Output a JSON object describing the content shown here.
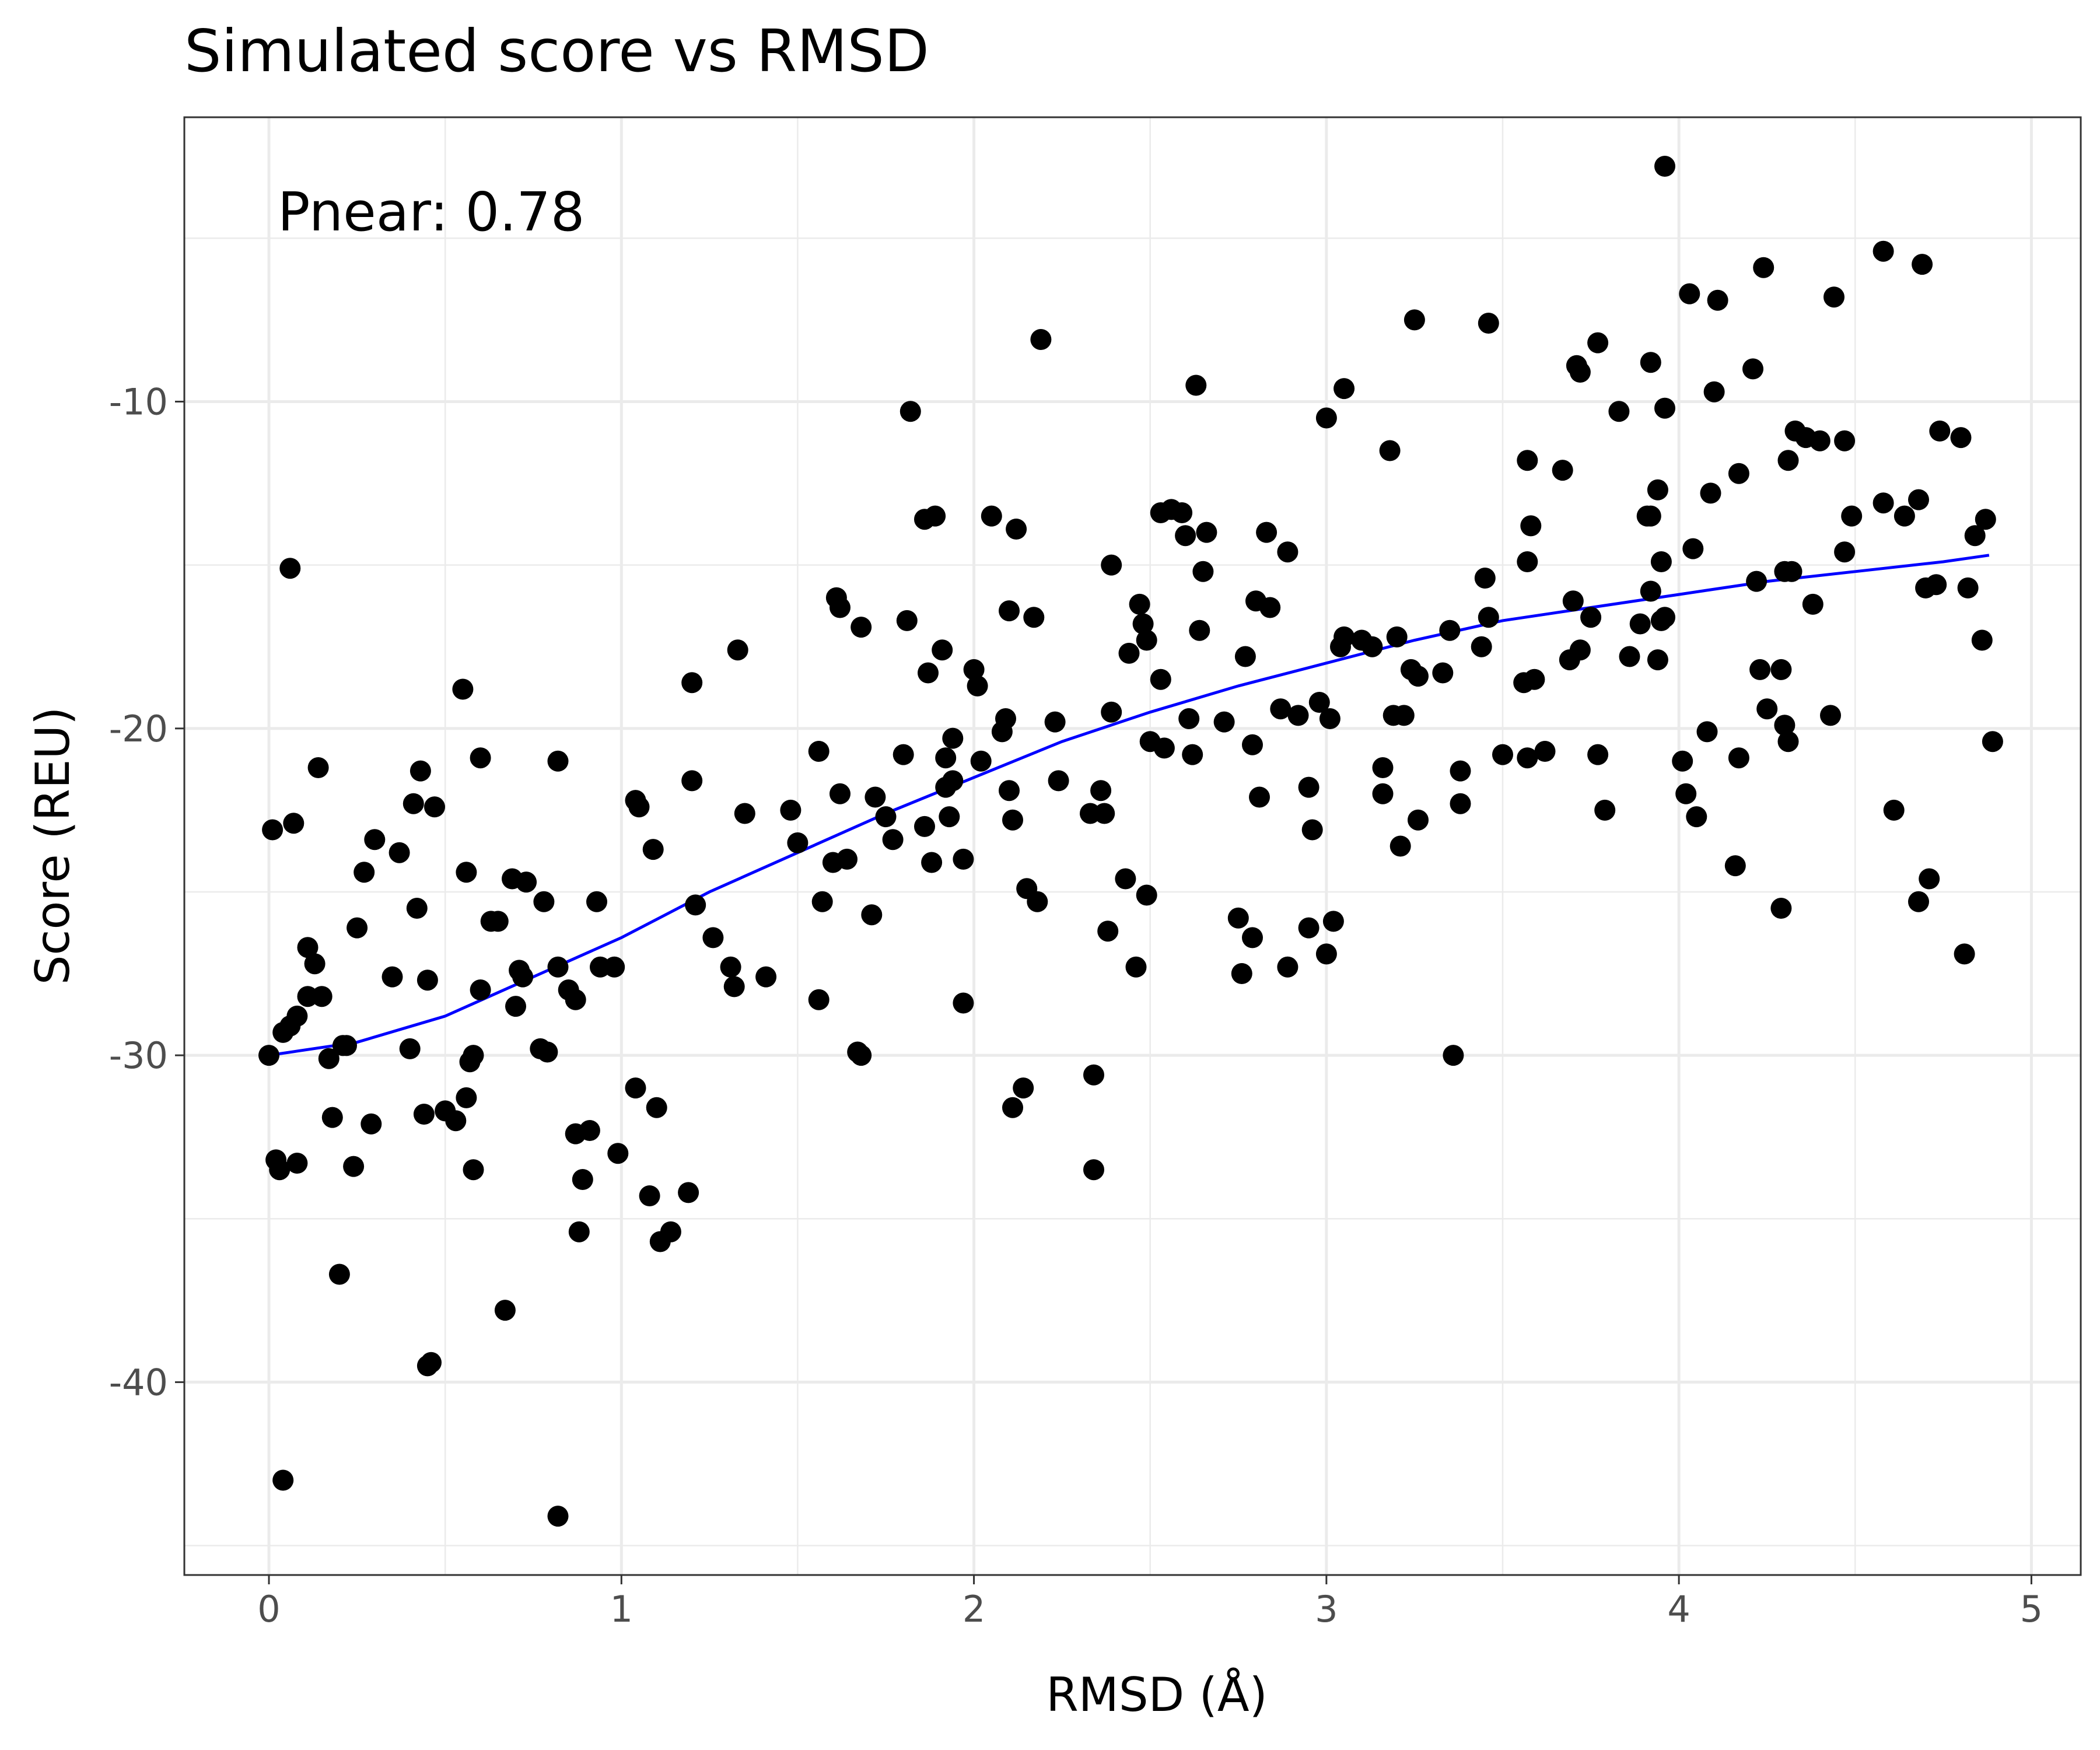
{
  "chart_data": {
    "type": "scatter",
    "title": "Simulated score vs RMSD",
    "xlabel": "RMSD (Å)",
    "ylabel": "Score (REU)",
    "annotation": "Pnear: 0.78",
    "xlim": [
      -0.24,
      5.14
    ],
    "ylim": [
      -45.9,
      -1.3
    ],
    "x_ticks": [
      0,
      1,
      2,
      3,
      4,
      5
    ],
    "x_tick_labels": [
      "0",
      "1",
      "2",
      "3",
      "4",
      "5"
    ],
    "y_ticks": [
      -40,
      -30,
      -20,
      -10
    ],
    "y_tick_labels": [
      "-40",
      "-30",
      "-20",
      "-10"
    ],
    "grid": true,
    "legend": "none",
    "colors": {
      "points": "#000000",
      "fit_line": "#0000ff"
    },
    "series": [
      {
        "kind": "points",
        "points": [
          [
            0.0,
            -30.0
          ],
          [
            0.01,
            -23.1
          ],
          [
            0.02,
            -33.2
          ],
          [
            0.03,
            -33.5
          ],
          [
            0.04,
            -43.0
          ],
          [
            0.04,
            -29.3
          ],
          [
            0.06,
            -29.1
          ],
          [
            0.06,
            -15.1
          ],
          [
            0.07,
            -22.9
          ],
          [
            0.08,
            -28.8
          ],
          [
            0.08,
            -33.3
          ],
          [
            0.11,
            -28.2
          ],
          [
            0.11,
            -26.7
          ],
          [
            0.13,
            -27.2
          ],
          [
            0.14,
            -21.2
          ],
          [
            0.15,
            -28.2
          ],
          [
            0.17,
            -30.1
          ],
          [
            0.18,
            -31.9
          ],
          [
            0.2,
            -36.7
          ],
          [
            0.21,
            -29.7
          ],
          [
            0.22,
            -29.7
          ],
          [
            0.24,
            -33.4
          ],
          [
            0.25,
            -26.1
          ],
          [
            0.27,
            -24.4
          ],
          [
            0.29,
            -32.1
          ],
          [
            0.3,
            -23.4
          ],
          [
            0.35,
            -27.6
          ],
          [
            0.37,
            -23.8
          ],
          [
            0.4,
            -29.8
          ],
          [
            0.41,
            -22.3
          ],
          [
            0.42,
            -25.5
          ],
          [
            0.43,
            -21.3
          ],
          [
            0.44,
            -31.8
          ],
          [
            0.45,
            -39.5
          ],
          [
            0.45,
            -27.7
          ],
          [
            0.46,
            -39.4
          ],
          [
            0.47,
            -22.4
          ],
          [
            0.5,
            -31.7
          ],
          [
            0.53,
            -32.0
          ],
          [
            0.55,
            -18.8
          ],
          [
            0.56,
            -24.4
          ],
          [
            0.56,
            -31.3
          ],
          [
            0.57,
            -30.2
          ],
          [
            0.58,
            -33.5
          ],
          [
            0.58,
            -30.0
          ],
          [
            0.6,
            -20.9
          ],
          [
            0.6,
            -28.0
          ],
          [
            0.63,
            -25.9
          ],
          [
            0.65,
            -25.9
          ],
          [
            0.67,
            -37.8
          ],
          [
            0.69,
            -24.6
          ],
          [
            0.7,
            -28.5
          ],
          [
            0.71,
            -27.4
          ],
          [
            0.72,
            -27.6
          ],
          [
            0.73,
            -24.7
          ],
          [
            0.77,
            -29.8
          ],
          [
            0.78,
            -25.3
          ],
          [
            0.79,
            -29.9
          ],
          [
            0.82,
            -21.0
          ],
          [
            0.82,
            -27.3
          ],
          [
            0.82,
            -44.1
          ],
          [
            0.85,
            -28.0
          ],
          [
            0.87,
            -32.4
          ],
          [
            0.87,
            -28.3
          ],
          [
            0.88,
            -35.4
          ],
          [
            0.89,
            -33.8
          ],
          [
            0.91,
            -32.3
          ],
          [
            0.93,
            -25.3
          ],
          [
            0.94,
            -27.3
          ],
          [
            0.98,
            -27.3
          ],
          [
            0.99,
            -33.0
          ],
          [
            1.04,
            -31.0
          ],
          [
            1.04,
            -22.2
          ],
          [
            1.05,
            -22.4
          ],
          [
            1.08,
            -34.3
          ],
          [
            1.09,
            -23.7
          ],
          [
            1.1,
            -31.6
          ],
          [
            1.11,
            -35.7
          ],
          [
            1.14,
            -35.4
          ],
          [
            1.19,
            -34.2
          ],
          [
            1.2,
            -21.6
          ],
          [
            1.2,
            -18.6
          ],
          [
            1.21,
            -25.4
          ],
          [
            1.26,
            -26.4
          ],
          [
            1.31,
            -27.3
          ],
          [
            1.32,
            -27.9
          ],
          [
            1.33,
            -17.6
          ],
          [
            1.35,
            -22.6
          ],
          [
            1.41,
            -27.6
          ],
          [
            1.48,
            -22.5
          ],
          [
            1.5,
            -23.5
          ],
          [
            1.56,
            -28.3
          ],
          [
            1.56,
            -20.7
          ],
          [
            1.57,
            -25.3
          ],
          [
            1.6,
            -24.1
          ],
          [
            1.61,
            -16.0
          ],
          [
            1.62,
            -16.3
          ],
          [
            1.62,
            -22.0
          ],
          [
            1.64,
            -24.0
          ],
          [
            1.67,
            -29.9
          ],
          [
            1.68,
            -16.9
          ],
          [
            1.68,
            -30.0
          ],
          [
            1.71,
            -25.7
          ],
          [
            1.72,
            -22.1
          ],
          [
            1.75,
            -22.7
          ],
          [
            1.77,
            -23.4
          ],
          [
            1.8,
            -20.8
          ],
          [
            1.81,
            -16.7
          ],
          [
            1.82,
            -10.3
          ],
          [
            1.86,
            -13.6
          ],
          [
            1.86,
            -23.0
          ],
          [
            1.87,
            -18.3
          ],
          [
            1.88,
            -24.1
          ],
          [
            1.89,
            -13.5
          ],
          [
            1.91,
            -17.6
          ],
          [
            1.92,
            -21.8
          ],
          [
            1.92,
            -20.9
          ],
          [
            1.93,
            -22.7
          ],
          [
            1.94,
            -21.6
          ],
          [
            1.94,
            -20.3
          ],
          [
            1.97,
            -24.0
          ],
          [
            1.97,
            -28.4
          ],
          [
            2.0,
            -18.2
          ],
          [
            2.01,
            -18.7
          ],
          [
            2.02,
            -21.0
          ],
          [
            2.05,
            -13.5
          ],
          [
            2.08,
            -20.1
          ],
          [
            2.09,
            -19.7
          ],
          [
            2.1,
            -21.9
          ],
          [
            2.1,
            -16.4
          ],
          [
            2.11,
            -22.8
          ],
          [
            2.11,
            -31.6
          ],
          [
            2.12,
            -13.9
          ],
          [
            2.14,
            -31.0
          ],
          [
            2.15,
            -24.9
          ],
          [
            2.17,
            -16.6
          ],
          [
            2.18,
            -25.3
          ],
          [
            2.19,
            -8.1
          ],
          [
            2.23,
            -19.8
          ],
          [
            2.24,
            -21.6
          ],
          [
            2.33,
            -22.6
          ],
          [
            2.34,
            -33.5
          ],
          [
            2.34,
            -30.6
          ],
          [
            2.36,
            -21.9
          ],
          [
            2.37,
            -22.6
          ],
          [
            2.38,
            -26.2
          ],
          [
            2.39,
            -15.0
          ],
          [
            2.39,
            -19.5
          ],
          [
            2.43,
            -24.6
          ],
          [
            2.44,
            -17.7
          ],
          [
            2.46,
            -27.3
          ],
          [
            2.47,
            -16.2
          ],
          [
            2.48,
            -16.8
          ],
          [
            2.49,
            -17.3
          ],
          [
            2.49,
            -25.1
          ],
          [
            2.5,
            -20.4
          ],
          [
            2.53,
            -18.5
          ],
          [
            2.53,
            -13.4
          ],
          [
            2.54,
            -20.6
          ],
          [
            2.56,
            -13.3
          ],
          [
            2.59,
            -13.4
          ],
          [
            2.6,
            -14.1
          ],
          [
            2.61,
            -19.7
          ],
          [
            2.62,
            -20.8
          ],
          [
            2.63,
            -9.5
          ],
          [
            2.64,
            -17.0
          ],
          [
            2.65,
            -15.2
          ],
          [
            2.66,
            -14.0
          ],
          [
            2.71,
            -19.8
          ],
          [
            2.75,
            -25.8
          ],
          [
            2.76,
            -27.5
          ],
          [
            2.77,
            -17.8
          ],
          [
            2.79,
            -20.5
          ],
          [
            2.79,
            -26.4
          ],
          [
            2.8,
            -16.1
          ],
          [
            2.81,
            -22.1
          ],
          [
            2.83,
            -14.0
          ],
          [
            2.84,
            -16.3
          ],
          [
            2.87,
            -19.4
          ],
          [
            2.89,
            -14.6
          ],
          [
            2.89,
            -27.3
          ],
          [
            2.92,
            -19.6
          ],
          [
            2.95,
            -21.8
          ],
          [
            2.95,
            -26.1
          ],
          [
            2.96,
            -23.1
          ],
          [
            2.98,
            -19.2
          ],
          [
            3.0,
            -10.5
          ],
          [
            3.0,
            -26.9
          ],
          [
            3.01,
            -19.7
          ],
          [
            3.02,
            -25.9
          ],
          [
            3.04,
            -17.5
          ],
          [
            3.05,
            -9.6
          ],
          [
            3.05,
            -17.2
          ],
          [
            3.1,
            -17.3
          ],
          [
            3.13,
            -17.5
          ],
          [
            3.16,
            -21.2
          ],
          [
            3.16,
            -22.0
          ],
          [
            3.18,
            -11.5
          ],
          [
            3.19,
            -19.6
          ],
          [
            3.2,
            -17.2
          ],
          [
            3.21,
            -23.6
          ],
          [
            3.22,
            -19.6
          ],
          [
            3.24,
            -18.2
          ],
          [
            3.25,
            -7.5
          ],
          [
            3.26,
            -22.8
          ],
          [
            3.26,
            -18.4
          ],
          [
            3.33,
            -18.3
          ],
          [
            3.35,
            -17.0
          ],
          [
            3.36,
            -30.0
          ],
          [
            3.38,
            -22.3
          ],
          [
            3.38,
            -21.3
          ],
          [
            3.44,
            -17.5
          ],
          [
            3.45,
            -15.4
          ],
          [
            3.46,
            -16.6
          ],
          [
            3.46,
            -7.6
          ],
          [
            3.5,
            -20.8
          ],
          [
            3.56,
            -18.6
          ],
          [
            3.57,
            -11.8
          ],
          [
            3.57,
            -14.9
          ],
          [
            3.57,
            -20.9
          ],
          [
            3.58,
            -13.8
          ],
          [
            3.59,
            -18.5
          ],
          [
            3.62,
            -20.7
          ],
          [
            3.67,
            -12.1
          ],
          [
            3.69,
            -17.9
          ],
          [
            3.7,
            -16.1
          ],
          [
            3.71,
            -8.9
          ],
          [
            3.72,
            -17.6
          ],
          [
            3.72,
            -9.1
          ],
          [
            3.75,
            -16.6
          ],
          [
            3.77,
            -8.2
          ],
          [
            3.77,
            -20.8
          ],
          [
            3.79,
            -22.5
          ],
          [
            3.83,
            -10.3
          ],
          [
            3.86,
            -17.8
          ],
          [
            3.89,
            -16.8
          ],
          [
            3.91,
            -13.5
          ],
          [
            3.92,
            -15.8
          ],
          [
            3.92,
            -13.5
          ],
          [
            3.92,
            -8.8
          ],
          [
            3.94,
            -17.9
          ],
          [
            3.94,
            -12.7
          ],
          [
            3.95,
            -14.9
          ],
          [
            3.95,
            -16.7
          ],
          [
            3.96,
            -10.2
          ],
          [
            3.96,
            -16.6
          ],
          [
            3.96,
            -2.8
          ],
          [
            4.01,
            -21.0
          ],
          [
            4.02,
            -22.0
          ],
          [
            4.03,
            -6.7
          ],
          [
            4.04,
            -14.5
          ],
          [
            4.05,
            -22.7
          ],
          [
            4.08,
            -20.1
          ],
          [
            4.09,
            -12.8
          ],
          [
            4.1,
            -9.7
          ],
          [
            4.11,
            -6.9
          ],
          [
            4.16,
            -24.2
          ],
          [
            4.17,
            -20.9
          ],
          [
            4.17,
            -12.2
          ],
          [
            4.21,
            -9.0
          ],
          [
            4.22,
            -15.5
          ],
          [
            4.23,
            -18.2
          ],
          [
            4.24,
            -5.9
          ],
          [
            4.25,
            -19.4
          ],
          [
            4.29,
            -18.2
          ],
          [
            4.29,
            -25.5
          ],
          [
            4.3,
            -15.2
          ],
          [
            4.3,
            -19.9
          ],
          [
            4.31,
            -20.4
          ],
          [
            4.31,
            -11.8
          ],
          [
            4.32,
            -15.2
          ],
          [
            4.33,
            -10.9
          ],
          [
            4.36,
            -11.1
          ],
          [
            4.38,
            -16.2
          ],
          [
            4.4,
            -11.2
          ],
          [
            4.43,
            -19.6
          ],
          [
            4.44,
            -6.8
          ],
          [
            4.47,
            -11.2
          ],
          [
            4.47,
            -14.6
          ],
          [
            4.49,
            -13.5
          ],
          [
            4.58,
            -13.1
          ],
          [
            4.58,
            -5.4
          ],
          [
            4.61,
            -22.5
          ],
          [
            4.64,
            -13.5
          ],
          [
            4.68,
            -25.3
          ],
          [
            4.68,
            -13.0
          ],
          [
            4.69,
            -5.8
          ],
          [
            4.7,
            -15.7
          ],
          [
            4.71,
            -24.6
          ],
          [
            4.73,
            -15.6
          ],
          [
            4.74,
            -10.9
          ],
          [
            4.8,
            -11.1
          ],
          [
            4.81,
            -26.9
          ],
          [
            4.82,
            -15.7
          ],
          [
            4.84,
            -14.1
          ],
          [
            4.86,
            -17.3
          ],
          [
            4.87,
            -13.6
          ],
          [
            4.89,
            -20.4
          ]
        ]
      },
      {
        "kind": "line",
        "x": [
          0.0,
          0.25,
          0.5,
          0.75,
          1.0,
          1.25,
          1.5,
          1.75,
          2.0,
          2.25,
          2.5,
          2.75,
          3.0,
          3.25,
          3.5,
          3.75,
          4.0,
          4.25,
          4.5,
          4.75,
          4.88
        ],
        "y": [
          -30.0,
          -29.6,
          -28.8,
          -27.6,
          -26.4,
          -25.0,
          -23.8,
          -22.6,
          -21.5,
          -20.4,
          -19.5,
          -18.7,
          -18.0,
          -17.3,
          -16.7,
          -16.3,
          -15.9,
          -15.5,
          -15.2,
          -14.9,
          -14.7
        ]
      }
    ]
  }
}
